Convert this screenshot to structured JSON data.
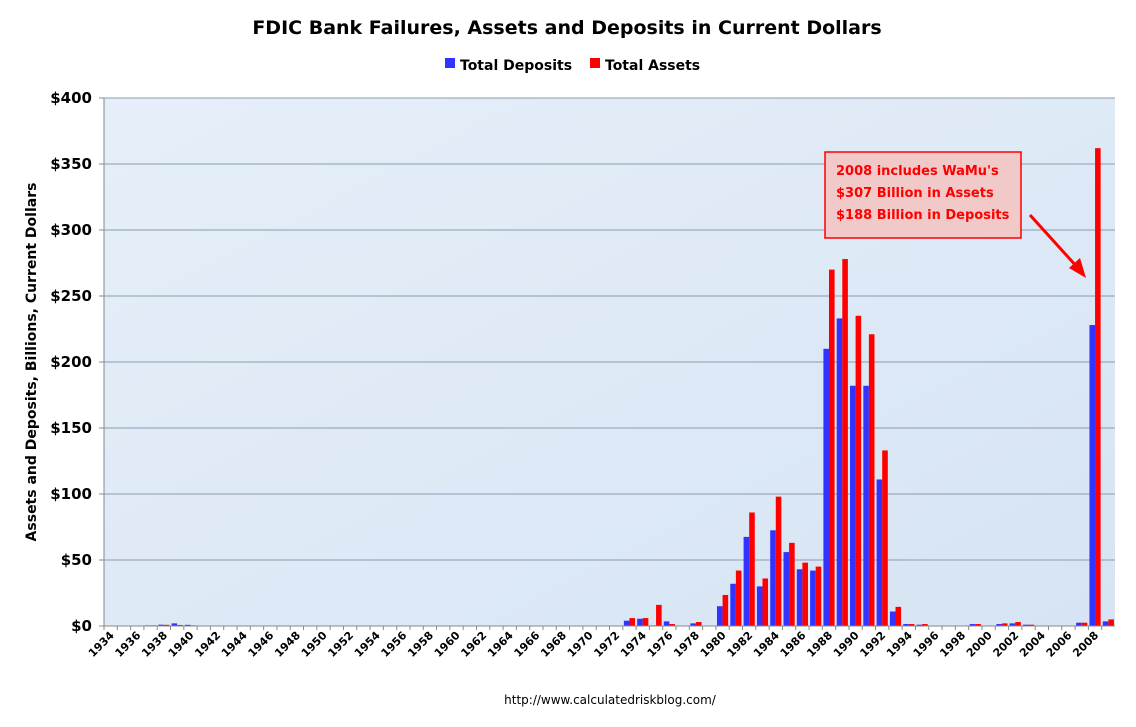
{
  "chart_data": {
    "type": "bar",
    "title": "FDIC Bank Failures, Assets and Deposits in Current Dollars",
    "ylabel": "Assets and Deposits, Billions, Current Dollars",
    "xlabel": "",
    "ylim": [
      0,
      400
    ],
    "yticks": [
      0,
      50,
      100,
      150,
      200,
      250,
      300,
      350,
      400
    ],
    "ytick_labels": [
      "$0",
      "$50",
      "$100",
      "$150",
      "$200",
      "$250",
      "$300",
      "$350",
      "$400"
    ],
    "grid": "horizontal",
    "legend_position": "top-center",
    "categories": [
      1934,
      1935,
      1936,
      1937,
      1938,
      1939,
      1940,
      1941,
      1942,
      1943,
      1944,
      1945,
      1946,
      1947,
      1948,
      1949,
      1950,
      1951,
      1952,
      1953,
      1954,
      1955,
      1956,
      1957,
      1958,
      1959,
      1960,
      1961,
      1962,
      1963,
      1964,
      1965,
      1966,
      1967,
      1968,
      1969,
      1970,
      1971,
      1972,
      1973,
      1974,
      1975,
      1976,
      1977,
      1978,
      1979,
      1980,
      1981,
      1982,
      1983,
      1984,
      1985,
      1986,
      1987,
      1988,
      1989,
      1990,
      1991,
      1992,
      1993,
      1994,
      1995,
      1996,
      1997,
      1998,
      1999,
      2000,
      2001,
      2002,
      2003,
      2004,
      2005,
      2006,
      2007,
      2008,
      2009
    ],
    "xtick_labels": [
      "1934",
      "1936",
      "1938",
      "1940",
      "1942",
      "1944",
      "1946",
      "1948",
      "1950",
      "1952",
      "1954",
      "1956",
      "1958",
      "1960",
      "1962",
      "1964",
      "1966",
      "1968",
      "1970",
      "1972",
      "1974",
      "1976",
      "1978",
      "1980",
      "1982",
      "1984",
      "1986",
      "1988",
      "1990",
      "1992",
      "1994",
      "1996",
      "1998",
      "2000",
      "2002",
      "2004",
      "2006",
      "2008"
    ],
    "series": [
      {
        "name": "Total Deposits",
        "color": "#3333ff",
        "values": [
          0.3,
          0.3,
          0.3,
          0.5,
          1.0,
          2.0,
          0.9,
          0.3,
          0.2,
          0.1,
          0,
          0,
          0,
          0,
          0,
          0,
          0,
          0,
          0,
          0.1,
          0,
          0,
          0,
          0,
          0,
          0,
          0,
          0,
          0,
          0,
          0.1,
          0.1,
          0.1,
          0,
          0,
          0.1,
          0,
          0.1,
          0.1,
          4.0,
          5.5,
          0.5,
          3.5,
          0.2,
          2.0,
          0.1,
          15.0,
          32.0,
          67.5,
          30.0,
          72.5,
          56.0,
          43.0,
          42.0,
          210.0,
          233.0,
          182.0,
          182.0,
          111.0,
          11.0,
          1.5,
          1.0,
          0,
          0,
          0.3,
          1.5,
          0.3,
          1.5,
          2.0,
          1.0,
          0.2,
          0,
          0,
          2.5,
          228.0,
          3.5
        ]
      },
      {
        "name": "Total Assets",
        "color": "#ff0000",
        "values": [
          0.3,
          0.3,
          0.3,
          0.5,
          0.9,
          0.8,
          0.5,
          0.2,
          0.1,
          0.1,
          0,
          0,
          0,
          0,
          0,
          0,
          0,
          0,
          0,
          0.1,
          0,
          0,
          0,
          0,
          0,
          0,
          0,
          0,
          0,
          0,
          0.1,
          0.1,
          0.1,
          0,
          0.1,
          0.1,
          0.1,
          0.1,
          0.1,
          6.0,
          6.0,
          16.0,
          1.5,
          0.3,
          3.0,
          0.2,
          23.5,
          42.0,
          86.0,
          36.0,
          98.0,
          63.0,
          48.0,
          45.0,
          270.0,
          278.0,
          235.0,
          221.0,
          133.0,
          14.5,
          1.5,
          1.5,
          0.2,
          0,
          0.3,
          1.5,
          0.4,
          2.0,
          3.0,
          1.0,
          0.2,
          0,
          0,
          2.5,
          362.0,
          5.0
        ]
      }
    ],
    "annotation": {
      "lines": [
        "2008 includes  WaMu's",
        "$307 Billion in Assets",
        "$188 Billion in Deposits"
      ],
      "points_to": 2008
    },
    "source": "http://www.calculatedriskblog.com/"
  }
}
